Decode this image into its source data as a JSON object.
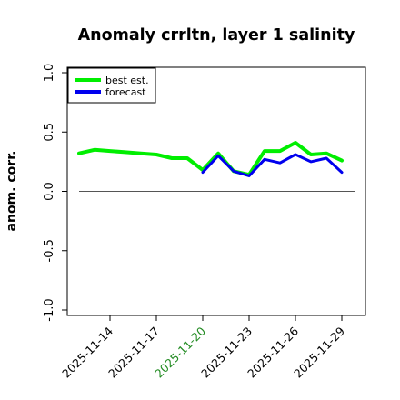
{
  "chart_data": {
    "type": "line",
    "title": "Anomaly crrltn, layer 1 salinity",
    "ylabel": "anom. corr.",
    "xlabel": "",
    "ylim": [
      -1.0,
      1.0
    ],
    "y_ticks": [
      "-1.0",
      "-0.5",
      "0.0",
      "0.5",
      "1.0"
    ],
    "y_tick_values": [
      -1.0,
      -0.5,
      0.0,
      0.5,
      1.0
    ],
    "x": [
      "2025-11-12",
      "2025-11-13",
      "2025-11-14",
      "2025-11-15",
      "2025-11-16",
      "2025-11-17",
      "2025-11-18",
      "2025-11-19",
      "2025-11-20",
      "2025-11-21",
      "2025-11-22",
      "2025-11-23",
      "2025-11-24",
      "2025-11-25",
      "2025-11-26",
      "2025-11-27",
      "2025-11-28",
      "2025-11-29"
    ],
    "x_ticks": [
      "2025-11-14",
      "2025-11-17",
      "2025-11-20",
      "2025-11-23",
      "2025-11-26",
      "2025-11-29"
    ],
    "highlight_tick": "2025-11-20",
    "highlight_color": "#228B22",
    "reference_line": 0.0,
    "legend_position": "top-left",
    "series": [
      {
        "name": "best est.",
        "color": "#00ee00",
        "x": [
          "2025-11-12",
          "2025-11-13",
          "2025-11-14",
          "2025-11-15",
          "2025-11-16",
          "2025-11-17",
          "2025-11-18",
          "2025-11-19",
          "2025-11-20",
          "2025-11-21",
          "2025-11-22",
          "2025-11-23",
          "2025-11-24",
          "2025-11-25",
          "2025-11-26",
          "2025-11-27",
          "2025-11-28",
          "2025-11-29"
        ],
        "values": [
          0.32,
          0.35,
          0.34,
          0.33,
          0.32,
          0.31,
          0.28,
          0.28,
          0.18,
          0.32,
          0.17,
          0.14,
          0.34,
          0.34,
          0.41,
          0.31,
          0.32,
          0.26
        ]
      },
      {
        "name": "forecast",
        "color": "#0000ee",
        "x": [
          "2025-11-20",
          "2025-11-21",
          "2025-11-22",
          "2025-11-23",
          "2025-11-24",
          "2025-11-25",
          "2025-11-26",
          "2025-11-27",
          "2025-11-28",
          "2025-11-29"
        ],
        "values": [
          0.16,
          0.3,
          0.17,
          0.13,
          0.27,
          0.24,
          0.31,
          0.25,
          0.28,
          0.16
        ]
      }
    ]
  }
}
